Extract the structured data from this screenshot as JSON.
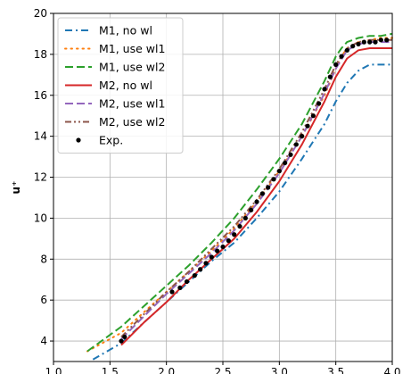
{
  "chart_data": {
    "type": "line",
    "xlabel": "",
    "ylabel": "u⁺",
    "xlim": [
      1.0,
      4.0
    ],
    "ylim": [
      3.0,
      20.0
    ],
    "xticks": [
      1.0,
      1.5,
      2.0,
      2.5,
      3.0,
      3.5,
      4.0
    ],
    "xtick_labels": [
      "1.0",
      "1.5",
      "2.0",
      "2.5",
      "3.0",
      "3.5",
      "4.0"
    ],
    "yticks": [
      4,
      6,
      8,
      10,
      12,
      14,
      16,
      18,
      20
    ],
    "ytick_labels": [
      "4",
      "6",
      "8",
      "10",
      "12",
      "14",
      "16",
      "18",
      "20"
    ],
    "grid": true,
    "legend_position": "top-left",
    "series": [
      {
        "name": "M1, no wl",
        "style": "dashdot",
        "color": "#1f77b4",
        "x": [
          1.35,
          1.6,
          1.8,
          2.0,
          2.2,
          2.4,
          2.6,
          2.8,
          3.0,
          3.2,
          3.4,
          3.5,
          3.6,
          3.7,
          3.8,
          3.9,
          4.0
        ],
        "y": [
          3.1,
          3.9,
          4.9,
          5.9,
          6.9,
          7.9,
          8.8,
          10.0,
          11.3,
          12.9,
          14.6,
          15.7,
          16.6,
          17.2,
          17.5,
          17.5,
          17.5
        ]
      },
      {
        "name": "M1, use wl1",
        "style": "dotted",
        "color": "#ff7f0e",
        "x": [
          1.3,
          1.6,
          1.8,
          2.0,
          2.2,
          2.4,
          2.6,
          2.8,
          3.0,
          3.2,
          3.4,
          3.5,
          3.55,
          3.6,
          3.7,
          3.8,
          3.9,
          4.0
        ],
        "y": [
          3.5,
          4.4,
          5.4,
          6.4,
          7.4,
          8.4,
          9.5,
          10.8,
          12.3,
          14.0,
          16.0,
          17.3,
          17.9,
          18.3,
          18.6,
          18.7,
          18.8,
          18.8
        ]
      },
      {
        "name": "M1, use wl2",
        "style": "dashed",
        "color": "#2ca02c",
        "x": [
          1.3,
          1.6,
          1.8,
          2.0,
          2.2,
          2.4,
          2.6,
          2.8,
          3.0,
          3.2,
          3.4,
          3.5,
          3.55,
          3.6,
          3.7,
          3.8,
          3.9,
          4.0
        ],
        "y": [
          3.5,
          4.7,
          5.7,
          6.7,
          7.7,
          8.8,
          10.0,
          11.4,
          12.9,
          14.6,
          16.7,
          17.9,
          18.3,
          18.6,
          18.8,
          18.9,
          18.9,
          19.0
        ]
      },
      {
        "name": "M2, no wl",
        "style": "solid",
        "color": "#d62728",
        "x": [
          1.6,
          1.8,
          2.0,
          2.2,
          2.4,
          2.6,
          2.8,
          3.0,
          3.2,
          3.4,
          3.5,
          3.6,
          3.7,
          3.8,
          3.9,
          4.0
        ],
        "y": [
          3.8,
          4.9,
          5.9,
          7.0,
          8.0,
          9.0,
          10.3,
          11.8,
          13.6,
          15.7,
          16.9,
          17.8,
          18.2,
          18.3,
          18.3,
          18.3
        ]
      },
      {
        "name": "M2, use wl1",
        "style": "dashed",
        "color": "#9467bd",
        "x": [
          1.6,
          1.8,
          2.0,
          2.2,
          2.4,
          2.6,
          2.8,
          3.0,
          3.2,
          3.4,
          3.5,
          3.6,
          3.7,
          3.8,
          3.9,
          4.0
        ],
        "y": [
          4.1,
          5.2,
          6.3,
          7.3,
          8.3,
          9.4,
          10.7,
          12.2,
          14.0,
          16.1,
          17.3,
          18.2,
          18.5,
          18.6,
          18.6,
          18.6
        ]
      },
      {
        "name": "M2, use wl2",
        "style": "dashdotdot",
        "color": "#8c564b",
        "x": [
          1.6,
          1.8,
          2.0,
          2.2,
          2.4,
          2.6,
          2.8,
          3.0,
          3.2,
          3.4,
          3.5,
          3.6,
          3.7,
          3.8,
          3.9,
          4.0
        ],
        "y": [
          4.2,
          5.3,
          6.4,
          7.4,
          8.5,
          9.6,
          10.9,
          12.4,
          14.2,
          16.3,
          17.5,
          18.3,
          18.6,
          18.7,
          18.7,
          18.7
        ]
      },
      {
        "name": "Exp.",
        "style": "markers",
        "color": "#000000",
        "x": [
          1.6,
          1.63,
          2.05,
          2.12,
          2.18,
          2.25,
          2.3,
          2.35,
          2.4,
          2.45,
          2.5,
          2.55,
          2.6,
          2.65,
          2.7,
          2.75,
          2.8,
          2.85,
          2.9,
          2.95,
          3.0,
          3.05,
          3.1,
          3.15,
          3.2,
          3.25,
          3.3,
          3.35,
          3.4,
          3.45,
          3.5,
          3.55,
          3.6,
          3.65,
          3.7,
          3.75,
          3.8,
          3.85,
          3.9,
          3.95
        ],
        "y": [
          4.0,
          4.2,
          6.4,
          6.6,
          6.9,
          7.2,
          7.5,
          7.8,
          8.1,
          8.4,
          8.6,
          8.9,
          9.2,
          9.6,
          10.0,
          10.4,
          10.8,
          11.2,
          11.5,
          11.9,
          12.3,
          12.7,
          13.1,
          13.6,
          14.0,
          14.5,
          15.0,
          15.6,
          16.3,
          16.9,
          17.5,
          17.9,
          18.2,
          18.4,
          18.5,
          18.6,
          18.6,
          18.6,
          18.7,
          18.7
        ]
      }
    ]
  }
}
